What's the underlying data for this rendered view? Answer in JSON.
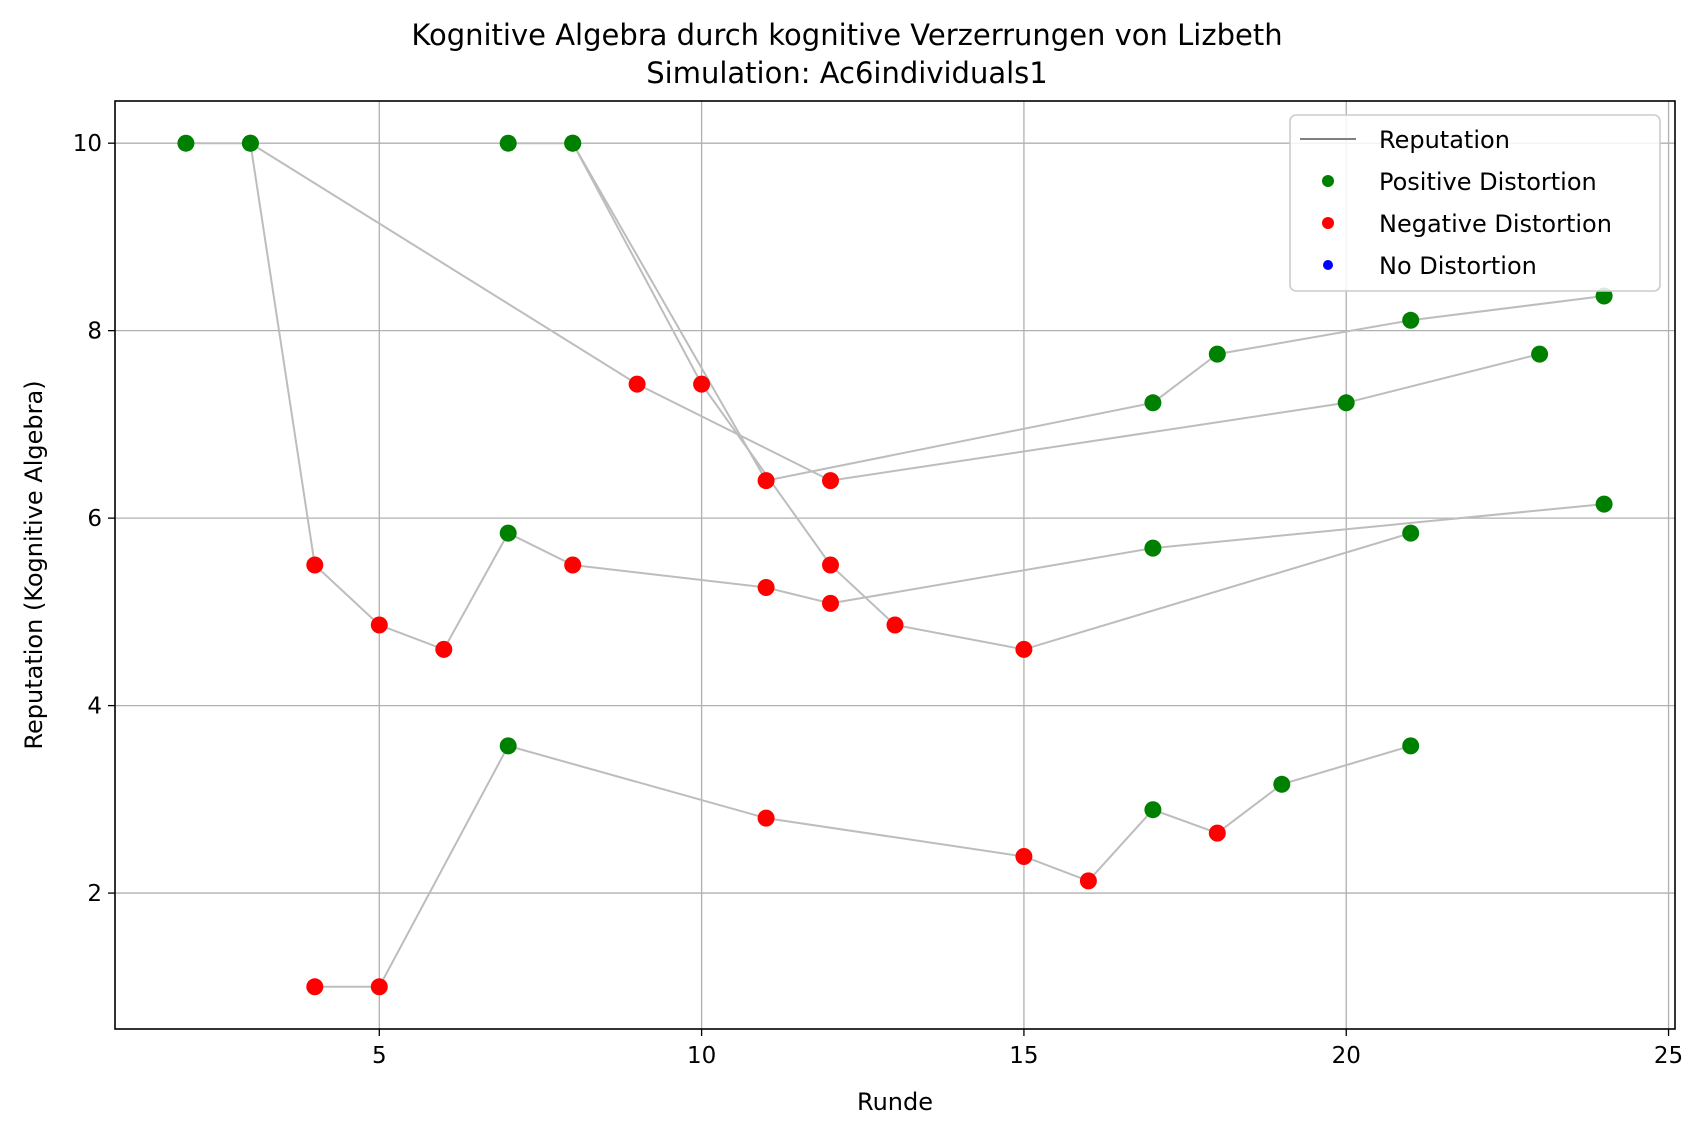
{
  "chart_data": {
    "type": "scatter",
    "title": "Kognitive Algebra durch kognitive Verzerrungen von Lizbeth",
    "subtitle": "Simulation: Ac6individuals1",
    "xlabel": "Runde",
    "ylabel": "Reputation (Kognitive Algebra)",
    "xlim": [
      0.9,
      25.1
    ],
    "ylim": [
      0.55,
      10.45
    ],
    "xticks": [
      5,
      10,
      15,
      20,
      25
    ],
    "yticks": [
      2,
      4,
      6,
      8,
      10
    ],
    "grid": true,
    "legend_position": "top-right",
    "legend": [
      {
        "label": "Reputation",
        "kind": "line",
        "color": "#808080"
      },
      {
        "label": "Positive Distortion",
        "kind": "marker",
        "color": "#008000"
      },
      {
        "label": "Negative Distortion",
        "kind": "marker",
        "color": "#ff0000"
      },
      {
        "label": "No Distortion",
        "kind": "marker",
        "color": "#0000ff"
      }
    ],
    "colors": {
      "line": "#bdbdbd",
      "positive": "#008000",
      "negative": "#ff0000",
      "none": "#0000ff",
      "grid": "#b0b0b0"
    },
    "series": [
      {
        "points": [
          [
            2,
            10.0,
            "positive"
          ],
          [
            3,
            10.0,
            "positive"
          ],
          [
            9,
            7.43,
            "negative"
          ],
          [
            12,
            6.4,
            "negative"
          ],
          [
            20,
            7.23,
            "positive"
          ],
          [
            23,
            7.75,
            "positive"
          ]
        ]
      },
      {
        "points": [
          [
            7,
            10.0,
            "positive"
          ],
          [
            8,
            10.0,
            "positive"
          ],
          [
            11,
            6.4,
            "negative"
          ],
          [
            17,
            7.23,
            "positive"
          ],
          [
            18,
            7.75,
            "positive"
          ],
          [
            21,
            8.11,
            "positive"
          ],
          [
            24,
            8.37,
            "positive"
          ]
        ]
      },
      {
        "points": [
          [
            3,
            10.0,
            "positive"
          ],
          [
            4,
            5.5,
            "negative"
          ],
          [
            5,
            4.86,
            "negative"
          ],
          [
            6,
            4.6,
            "negative"
          ],
          [
            7,
            5.84,
            "positive"
          ],
          [
            8,
            5.5,
            "negative"
          ],
          [
            11,
            5.26,
            "negative"
          ],
          [
            12,
            5.09,
            "negative"
          ],
          [
            17,
            5.68,
            "positive"
          ],
          [
            24,
            6.15,
            "positive"
          ]
        ]
      },
      {
        "points": [
          [
            8,
            10.0,
            "positive"
          ],
          [
            10,
            7.43,
            "negative"
          ],
          [
            12,
            5.5,
            "negative"
          ],
          [
            13,
            4.86,
            "negative"
          ],
          [
            15,
            4.6,
            "negative"
          ],
          [
            21,
            5.84,
            "positive"
          ]
        ]
      },
      {
        "points": [
          [
            4,
            1.0,
            "negative"
          ],
          [
            5,
            1.0,
            "negative"
          ],
          [
            7,
            3.57,
            "positive"
          ],
          [
            11,
            2.8,
            "negative"
          ],
          [
            15,
            2.39,
            "negative"
          ],
          [
            16,
            2.13,
            "negative"
          ],
          [
            17,
            2.89,
            "positive"
          ],
          [
            18,
            2.64,
            "negative"
          ],
          [
            19,
            3.16,
            "positive"
          ],
          [
            21,
            3.57,
            "positive"
          ]
        ]
      }
    ]
  }
}
